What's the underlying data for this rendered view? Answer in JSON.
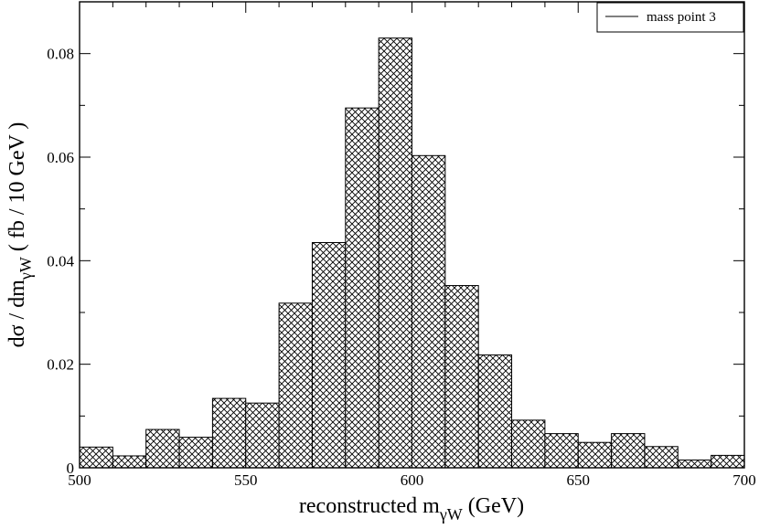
{
  "chart_data": {
    "type": "bar",
    "style": "histogram-crosshatch",
    "x_bin_edges": [
      500,
      510,
      520,
      530,
      540,
      550,
      560,
      570,
      580,
      590,
      600,
      610,
      620,
      630,
      640,
      650,
      660,
      670,
      680,
      690,
      700
    ],
    "values": [
      0.004,
      0.0023,
      0.0074,
      0.0059,
      0.0134,
      0.0125,
      0.0318,
      0.0435,
      0.0695,
      0.083,
      0.0603,
      0.0352,
      0.0218,
      0.0092,
      0.0066,
      0.0049,
      0.0066,
      0.0041,
      0.0015,
      0.0024
    ],
    "xlim": [
      500,
      700
    ],
    "ylim": [
      0,
      0.09
    ],
    "x_ticks": [
      500,
      550,
      600,
      650,
      700
    ],
    "x_tick_labels": [
      "500",
      "550",
      "600",
      "650",
      "700"
    ],
    "y_ticks": [
      0,
      0.02,
      0.04,
      0.06,
      0.08
    ],
    "y_tick_labels": [
      "0",
      "0.02",
      "0.04",
      "0.06",
      "0.08"
    ],
    "xlabel": {
      "main": "reconstructed m",
      "sub": "γW",
      "unit": " (GeV)"
    },
    "ylabel": {
      "main": "dσ / dm",
      "sub": "γW",
      "unit": "  ( fb / 10 GeV )"
    },
    "legend": {
      "placement": "top-right",
      "entries": [
        "mass point 3"
      ]
    },
    "grid": false,
    "colors": {
      "fill_pattern": "#000000",
      "background": "#ffffff",
      "axis": "#000000"
    }
  }
}
